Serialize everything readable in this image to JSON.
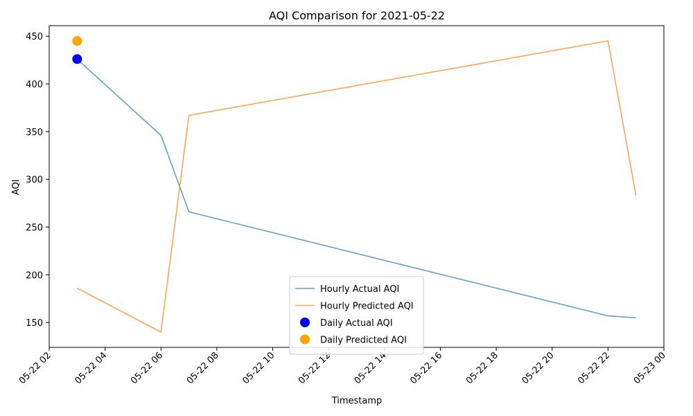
{
  "chart_data": {
    "type": "line",
    "title": "AQI Comparison for 2021-05-22",
    "xlabel": "Timestamp",
    "ylabel": "AQI",
    "xlim": [
      "2021-05-22 02:00",
      "2021-05-23 00:00"
    ],
    "ylim": [
      124,
      461
    ],
    "x_ticks": [
      {
        "t": "2021-05-22 02:00",
        "label": "05-22 02"
      },
      {
        "t": "2021-05-22 04:00",
        "label": "05-22 04"
      },
      {
        "t": "2021-05-22 06:00",
        "label": "05-22 06"
      },
      {
        "t": "2021-05-22 08:00",
        "label": "05-22 08"
      },
      {
        "t": "2021-05-22 10:00",
        "label": "05-22 10"
      },
      {
        "t": "2021-05-22 12:00",
        "label": "05-22 12"
      },
      {
        "t": "2021-05-22 14:00",
        "label": "05-22 14"
      },
      {
        "t": "2021-05-22 16:00",
        "label": "05-22 16"
      },
      {
        "t": "2021-05-22 18:00",
        "label": "05-22 18"
      },
      {
        "t": "2021-05-22 20:00",
        "label": "05-22 20"
      },
      {
        "t": "2021-05-22 22:00",
        "label": "05-22 22"
      },
      {
        "t": "2021-05-23 00:00",
        "label": "05-23 00"
      }
    ],
    "y_ticks": [
      150,
      200,
      250,
      300,
      350,
      400,
      450
    ],
    "grid": false,
    "legend_position": "bottom-center",
    "series": [
      {
        "name": "Hourly Actual AQI",
        "kind": "line",
        "color": "#1f77b4",
        "points": [
          {
            "x": "2021-05-22 03:00",
            "y": 426
          },
          {
            "x": "2021-05-22 06:00",
            "y": 346
          },
          {
            "x": "2021-05-22 07:00",
            "y": 266
          },
          {
            "x": "2021-05-22 22:00",
            "y": 157
          },
          {
            "x": "2021-05-22 23:00",
            "y": 155
          }
        ]
      },
      {
        "name": "Hourly Predicted AQI",
        "kind": "line",
        "color": "#ff7f0e",
        "points": [
          {
            "x": "2021-05-22 03:00",
            "y": 186
          },
          {
            "x": "2021-05-22 06:00",
            "y": 140
          },
          {
            "x": "2021-05-22 07:00",
            "y": 367
          },
          {
            "x": "2021-05-22 22:00",
            "y": 445
          },
          {
            "x": "2021-05-22 23:00",
            "y": 283
          }
        ]
      },
      {
        "name": "Daily Actual AQI",
        "kind": "marker",
        "color": "#0000ff",
        "points": [
          {
            "x": "2021-05-22 03:00",
            "y": 426
          }
        ]
      },
      {
        "name": "Daily Predicted AQI",
        "kind": "marker",
        "color": "#ffa500",
        "points": [
          {
            "x": "2021-05-22 03:00",
            "y": 445
          }
        ]
      }
    ]
  }
}
